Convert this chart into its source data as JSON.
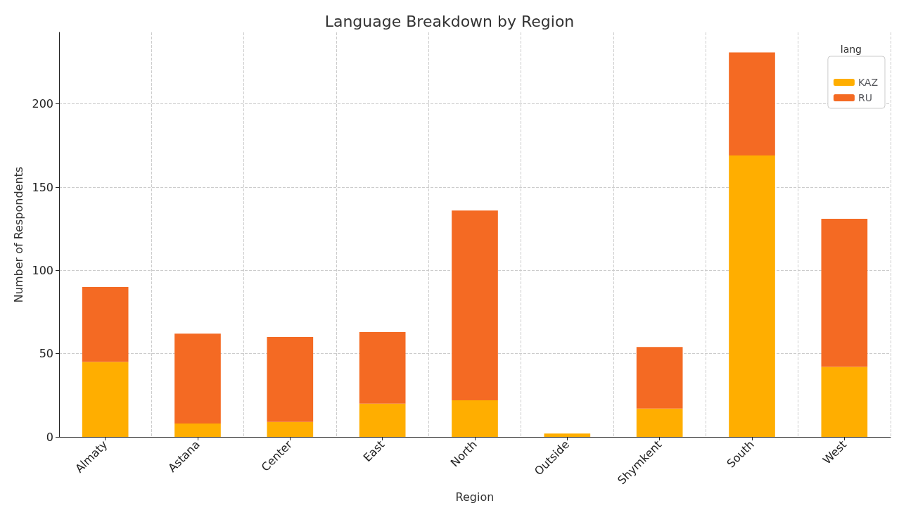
{
  "chart_data": {
    "type": "bar",
    "title": "Language Breakdown by Region",
    "xlabel": "Region",
    "ylabel": "Number of Respondents",
    "legend_title": "lang",
    "categories": [
      "Almaty",
      "Astana",
      "Center",
      "East",
      "North",
      "Outside",
      "Shymkent",
      "South",
      "West"
    ],
    "series": [
      {
        "name": "KAZ",
        "color": "#ffae00",
        "values": [
          45,
          8,
          9,
          20,
          22,
          2,
          17,
          169,
          42
        ]
      },
      {
        "name": "RU",
        "color": "#f46a23",
        "values": [
          45,
          54,
          51,
          43,
          114,
          0,
          37,
          62,
          89
        ]
      }
    ],
    "stacked": true,
    "ylim": [
      0,
      243
    ],
    "yticks": [
      0,
      50,
      100,
      150,
      200
    ],
    "grid": true,
    "legend": "top right"
  }
}
